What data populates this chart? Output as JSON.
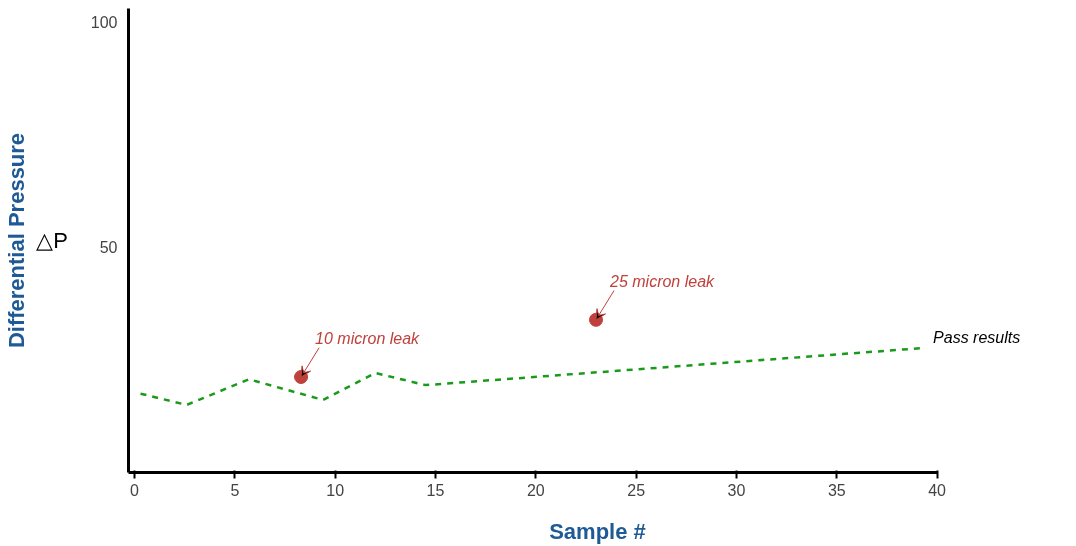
{
  "chart_data": {
    "type": "line",
    "xlabel": "Sample #",
    "ylabel": "Differential Pressure",
    "xlim": [
      -0.3,
      40
    ],
    "ylim": [
      0,
      103
    ],
    "xticks": [
      0,
      5,
      10,
      15,
      20,
      25,
      30,
      35,
      40
    ],
    "yticks": [
      50,
      100
    ],
    "grid": false,
    "line_style": "dashed",
    "series": [
      {
        "name": "Pass results",
        "color": "#1a9a1a",
        "marker": "none",
        "x": [
          0.3,
          2.6,
          5.7,
          9.4,
          12,
          14.5,
          39.2
        ],
        "values": [
          17.5,
          15,
          20.7,
          16.1,
          22.1,
          19.4,
          27.6
        ]
      },
      {
        "type": "scatter",
        "marker": "circle",
        "color": "#c0413b",
        "x": [
          8.3,
          23
        ],
        "values": [
          21.2,
          33.9
        ]
      }
    ],
    "annotations": [
      "△P",
      {
        "text": "10 micron leak",
        "x": 8.3,
        "y": 21.2
      },
      {
        "text": "25 micron leak",
        "x": 23,
        "y": 33.9
      }
    ]
  }
}
